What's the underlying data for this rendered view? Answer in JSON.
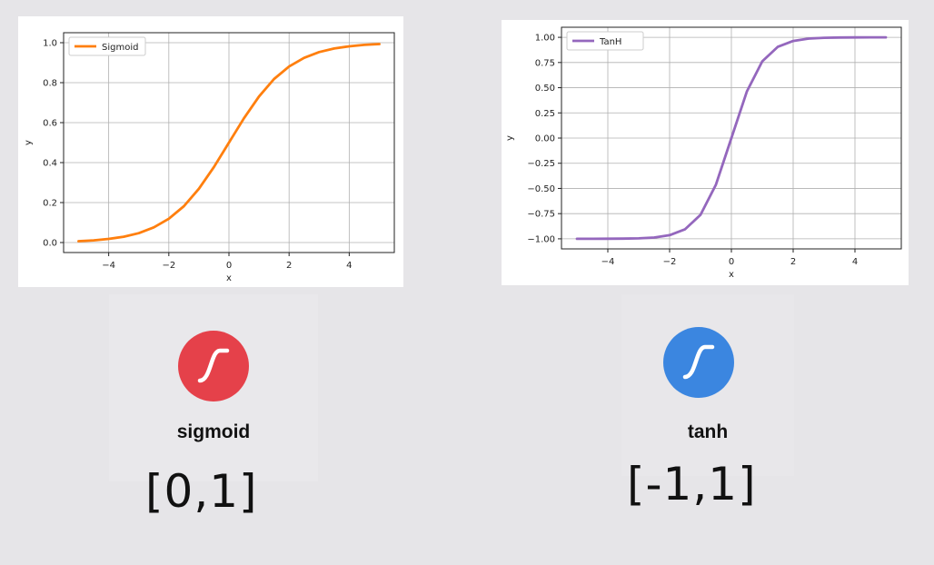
{
  "chart_data": [
    {
      "type": "line",
      "title": "",
      "xlabel": "x",
      "ylabel": "y",
      "xlim": [
        -5.5,
        5.5
      ],
      "ylim": [
        -0.05,
        1.05
      ],
      "x_ticks": [
        -4,
        -2,
        0,
        2,
        4
      ],
      "x_tick_labels": [
        "−4",
        "−2",
        "0",
        "2",
        "4"
      ],
      "y_ticks": [
        0.0,
        0.2,
        0.4,
        0.6,
        0.8,
        1.0
      ],
      "y_tick_labels": [
        "0.0",
        "0.2",
        "0.4",
        "0.6",
        "0.8",
        "1.0"
      ],
      "grid": true,
      "legend_position": "upper-left",
      "series": [
        {
          "name": "Sigmoid",
          "color": "#ff7f0e",
          "x": [
            -5,
            -4.5,
            -4,
            -3.5,
            -3,
            -2.5,
            -2,
            -1.5,
            -1,
            -0.5,
            0,
            0.5,
            1,
            1.5,
            2,
            2.5,
            3,
            3.5,
            4,
            4.5,
            5
          ],
          "y": [
            0.007,
            0.011,
            0.018,
            0.029,
            0.047,
            0.076,
            0.119,
            0.182,
            0.269,
            0.378,
            0.5,
            0.622,
            0.731,
            0.818,
            0.881,
            0.924,
            0.953,
            0.971,
            0.982,
            0.989,
            0.993
          ]
        }
      ]
    },
    {
      "type": "line",
      "title": "",
      "xlabel": "x",
      "ylabel": "y",
      "xlim": [
        -5.5,
        5.5
      ],
      "ylim": [
        -1.1,
        1.1
      ],
      "x_ticks": [
        -4,
        -2,
        0,
        2,
        4
      ],
      "x_tick_labels": [
        "−4",
        "−2",
        "0",
        "2",
        "4"
      ],
      "y_ticks": [
        -1.0,
        -0.75,
        -0.5,
        -0.25,
        0.0,
        0.25,
        0.5,
        0.75,
        1.0
      ],
      "y_tick_labels": [
        "−1.00",
        "−0.75",
        "−0.50",
        "−0.25",
        "0.00",
        "0.25",
        "0.50",
        "0.75",
        "1.00"
      ],
      "grid": true,
      "legend_position": "upper-left",
      "series": [
        {
          "name": "TanH",
          "color": "#9467bd",
          "x": [
            -5,
            -4.5,
            -4,
            -3.5,
            -3,
            -2.5,
            -2,
            -1.5,
            -1,
            -0.5,
            0,
            0.5,
            1,
            1.5,
            2,
            2.5,
            3,
            3.5,
            4,
            4.5,
            5
          ],
          "y": [
            -1.0,
            -1.0,
            -0.999,
            -0.998,
            -0.995,
            -0.987,
            -0.964,
            -0.905,
            -0.762,
            -0.462,
            0.0,
            0.462,
            0.762,
            0.905,
            0.964,
            0.987,
            0.995,
            0.998,
            0.999,
            1.0,
            1.0
          ]
        }
      ]
    }
  ],
  "cards": {
    "sigmoid": {
      "label": "sigmoid",
      "range": "[0,1]",
      "icon": "sigmoid-curve-icon",
      "color": "#e5414a"
    },
    "tanh": {
      "label": "tanh",
      "range": "[-1,1]",
      "icon": "tanh-curve-icon",
      "color": "#3b86e0"
    }
  }
}
